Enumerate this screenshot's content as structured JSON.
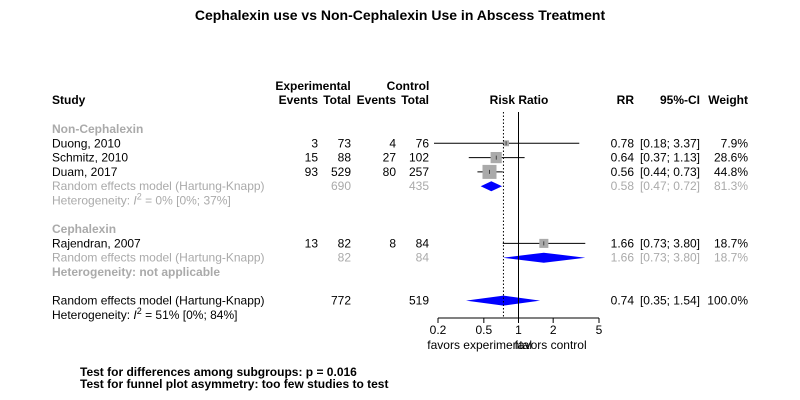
{
  "chart_data": {
    "type": "forest",
    "title": "Cephalexin use vs Non-Cephalexin Use in Abscess Treatment",
    "headers": {
      "study": "Study",
      "experimental": "Experimental",
      "control": "Control",
      "events": "Events",
      "total": "Total",
      "risk_ratio": "Risk Ratio",
      "rr": "RR",
      "ci": "95%-CI",
      "weight": "Weight"
    },
    "xaxis": {
      "scale": "log",
      "ticks": [
        0.2,
        0.5,
        1,
        2,
        5
      ],
      "tick_labels": [
        "0.2",
        "0.5",
        "1",
        "2",
        "5"
      ],
      "xlim": [
        0.2,
        5
      ],
      "label_left": "favors experimental",
      "label_right": "favors control",
      "null_value": 1,
      "pooled_line": 0.74
    },
    "rows": [
      {
        "kind": "group",
        "label": "Non-Cephalexin"
      },
      {
        "kind": "study",
        "label": "Duong, 2010",
        "e_events": "3",
        "e_total": "73",
        "c_events": "4",
        "c_total": "76",
        "rr": 0.78,
        "lo": 0.18,
        "hi": 3.37,
        "rr_text": "0.78",
        "ci_text": "[0.18; 3.37]",
        "weight": 7.9,
        "weight_text": "7.9%"
      },
      {
        "kind": "study",
        "label": "Schmitz, 2010",
        "e_events": "15",
        "e_total": "88",
        "c_events": "27",
        "c_total": "102",
        "rr": 0.64,
        "lo": 0.37,
        "hi": 1.13,
        "rr_text": "0.64",
        "ci_text": "[0.37; 1.13]",
        "weight": 28.6,
        "weight_text": "28.6%"
      },
      {
        "kind": "study",
        "label": "Duam, 2017",
        "e_events": "93",
        "e_total": "529",
        "c_events": "80",
        "c_total": "257",
        "rr": 0.56,
        "lo": 0.44,
        "hi": 0.73,
        "rr_text": "0.56",
        "ci_text": "[0.44; 0.73]",
        "weight": 44.8,
        "weight_text": "44.8%"
      },
      {
        "kind": "subtotal",
        "label": "Random effects model  (Hartung-Knapp)",
        "e_total": "690",
        "c_total": "435",
        "rr": 0.58,
        "lo": 0.47,
        "hi": 0.72,
        "rr_text": "0.58",
        "ci_text": "[0.47; 0.72]",
        "weight_text": "81.3%"
      },
      {
        "kind": "het",
        "prefix": "Heterogeneity: ",
        "i": "I",
        "sup": "2",
        "suffix": " = 0% [0%; 37%]"
      },
      {
        "kind": "spacer"
      },
      {
        "kind": "group",
        "label": "Cephalexin"
      },
      {
        "kind": "study",
        "label": "Rajendran, 2007",
        "e_events": "13",
        "e_total": "82",
        "c_events": "8",
        "c_total": "84",
        "rr": 1.66,
        "lo": 0.73,
        "hi": 3.8,
        "rr_text": "1.66",
        "ci_text": "[0.73; 3.80]",
        "weight": 18.7,
        "weight_text": "18.7%"
      },
      {
        "kind": "subtotal",
        "label": "Random effects model  (Hartung-Knapp)",
        "e_total": "82",
        "c_total": "84",
        "rr": 1.66,
        "lo": 0.73,
        "hi": 3.8,
        "rr_text": "1.66",
        "ci_text": "[0.73; 3.80]",
        "weight_text": "18.7%"
      },
      {
        "kind": "hetna",
        "label": "Heterogeneity: not applicable"
      },
      {
        "kind": "spacer"
      },
      {
        "kind": "overall",
        "label": "Random effects model  (Hartung-Knapp)",
        "e_total": "772",
        "c_total": "519",
        "rr": 0.74,
        "lo": 0.35,
        "hi": 1.54,
        "rr_text": "0.74",
        "ci_text": "[0.35; 1.54]",
        "weight_text": "100.0%"
      },
      {
        "kind": "het",
        "prefix": "Heterogeneity: ",
        "i": "I",
        "sup": "2",
        "suffix": " = 51% [0%; 84%]"
      }
    ],
    "footnotes": [
      "Test for differences among subgroups: p = 0.016",
      "Test for funnel plot asymmetry: too few studies to test"
    ],
    "colors": {
      "diamond": "#0000ff",
      "square": "#aaaaaa",
      "subgroup_text": "#aaaaaa",
      "text": "#000000"
    }
  }
}
